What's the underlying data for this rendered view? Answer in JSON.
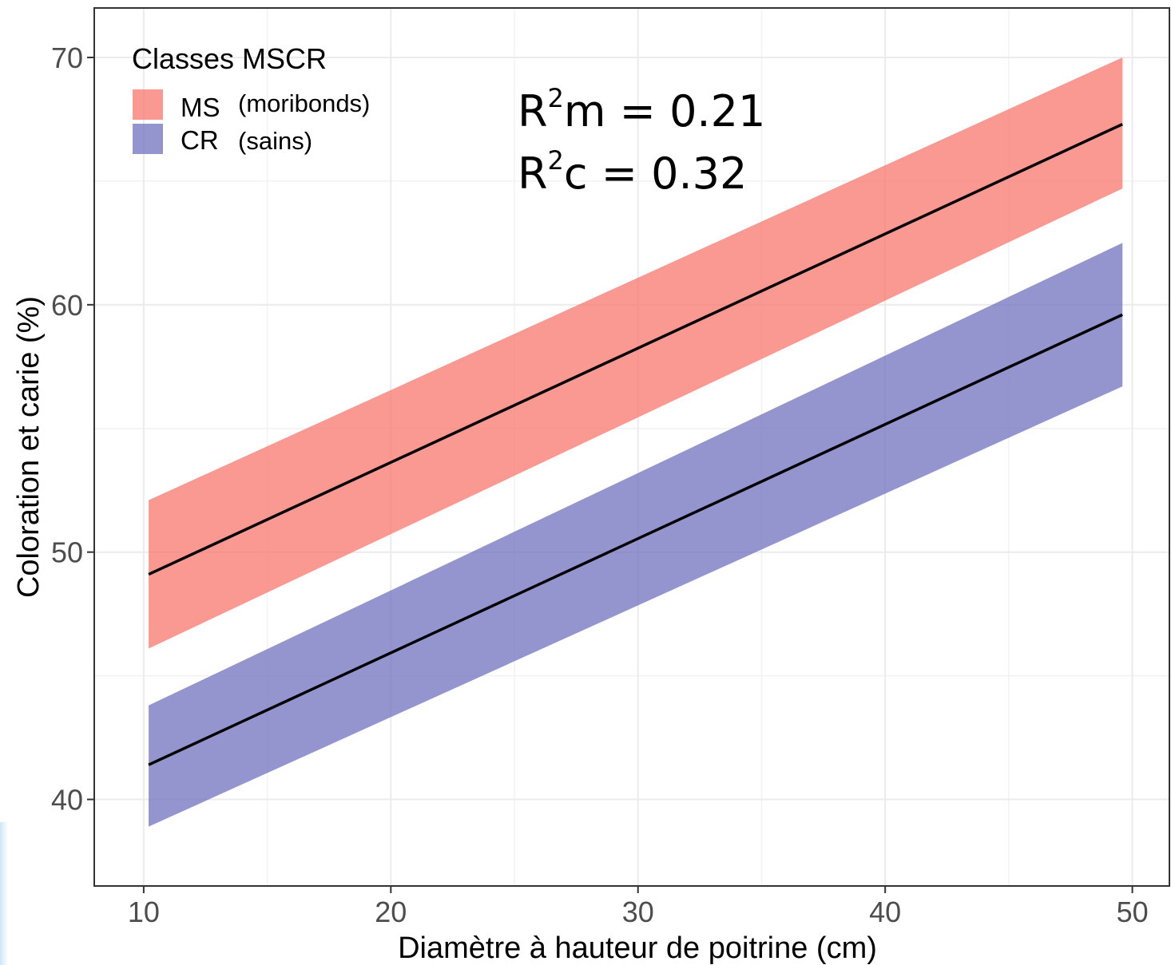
{
  "chart_data": {
    "type": "line",
    "xlabel": "Diamètre à hauteur de poitrine (cm)",
    "ylabel": "Coloration et carie (%)",
    "xlim": [
      8,
      51.5
    ],
    "ylim": [
      36.5,
      72
    ],
    "xticks": [
      10,
      20,
      30,
      40,
      50
    ],
    "yticks": [
      40,
      50,
      60,
      70
    ],
    "grid": true,
    "legend": {
      "title": "Classes MSCR",
      "position": "top-left",
      "entries": [
        {
          "label": "MS",
          "description": "(moribonds)",
          "color": "#f8766d"
        },
        {
          "label": "CR",
          "description": "(sains)",
          "color": "#7070bf"
        }
      ]
    },
    "annotations": {
      "r2m": {
        "base": "R",
        "sup": "2",
        "rest": "m = 0.21"
      },
      "r2c": {
        "base": "R",
        "sup": "2",
        "rest": "c = 0.32"
      }
    },
    "series": [
      {
        "name": "MS",
        "color": "#f8766d",
        "x": [
          10.2,
          49.6
        ],
        "y": [
          49.1,
          67.3
        ],
        "lower": [
          46.1,
          64.7
        ],
        "upper": [
          52.1,
          70.0
        ]
      },
      {
        "name": "CR",
        "color": "#7070bf",
        "x": [
          10.2,
          49.6
        ],
        "y": [
          41.4,
          59.6
        ],
        "lower": [
          38.9,
          56.7
        ],
        "upper": [
          43.8,
          62.5
        ]
      }
    ]
  }
}
